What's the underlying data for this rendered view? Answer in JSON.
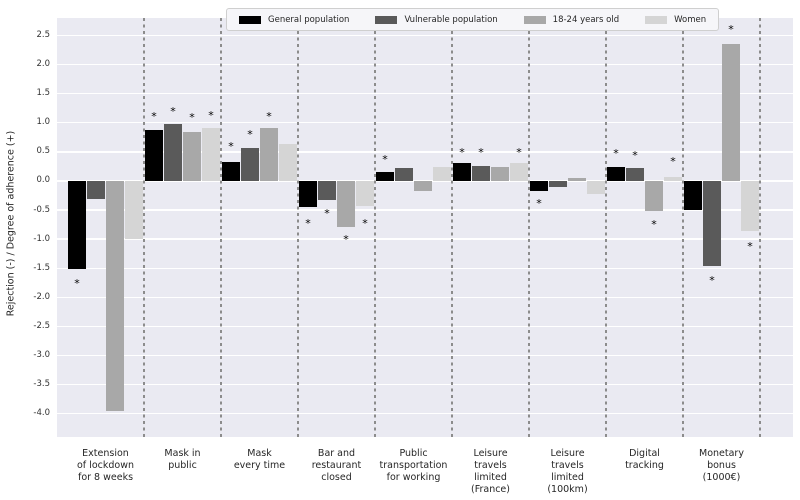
{
  "figure": {
    "ylabel": "Rejection (-) / Degree of adherence (+)"
  },
  "legend": {
    "position": "top-center",
    "items": [
      {
        "label": "General population",
        "color": "#000000"
      },
      {
        "label": "Vulnerable population",
        "color": "#5a5a5a"
      },
      {
        "label": "18-24 years old",
        "color": "#a8a8a8"
      },
      {
        "label": "Women",
        "color": "#d5d5d5"
      }
    ]
  },
  "chart_data": {
    "type": "bar",
    "title": "",
    "xlabel": "",
    "ylabel": "Rejection (-) / Degree of adherence (+)",
    "ylim": [
      -4.4,
      2.8
    ],
    "ytick_labels": [
      "2.5",
      "2.0",
      "1.5",
      "1.0",
      "0.5",
      "0.0",
      "-0.5",
      "-1.0",
      "-1.5",
      "-2.0",
      "-2.5",
      "-3.0",
      "-3.5",
      "-4.0"
    ],
    "ytick_values": [
      2.5,
      2.0,
      1.5,
      1.0,
      0.5,
      0.0,
      -0.5,
      -1.0,
      -1.5,
      -2.0,
      -2.5,
      -3.0,
      -3.5,
      -4.0
    ],
    "grid": true,
    "plot_background": "#eaeaf2",
    "group_separators": "dashed-vertical",
    "legend_position": "top-center",
    "categories": [
      "Extension of lockdown for 8 weeks",
      "Mask in public",
      "Mask every time",
      "Bar and restaurant closed",
      "Public transportation for working",
      "Leisure travels limited (France)",
      "Leisure travels limited (100km)",
      "Digital tracking",
      "Monetary bonus (1000€)"
    ],
    "categories_display": [
      "Extension\nof lockdown\nfor 8 weeks",
      "Mask in\npublic",
      "Mask\nevery time",
      "Bar and\nrestaurant\nclosed",
      "Public\ntransportation\nfor working",
      "Leisure\ntravels\nlimited\n(France)",
      "Leisure\ntravels\nlimited\n(100km)",
      "Digital\ntracking",
      "Monetary\nbonus\n(1000€)"
    ],
    "series": [
      {
        "name": "General population",
        "color": "#000000",
        "values": [
          -1.52,
          0.88,
          0.33,
          -0.45,
          0.15,
          0.3,
          -0.17,
          0.24,
          -0.5
        ],
        "significance_marker_y": [
          -1.72,
          1.14,
          0.62,
          -0.69,
          0.41,
          0.53,
          -0.36,
          0.5,
          null
        ]
      },
      {
        "name": "Vulnerable population",
        "color": "#5a5a5a",
        "values": [
          -0.31,
          0.98,
          0.57,
          -0.33,
          0.22,
          0.26,
          -0.1,
          0.22,
          -1.47
        ],
        "significance_marker_y": [
          null,
          1.22,
          0.84,
          -0.53,
          null,
          0.52,
          null,
          0.47,
          -1.67
        ]
      },
      {
        "name": "18-24 years old",
        "color": "#a8a8a8",
        "values": [
          -3.95,
          0.84,
          0.91,
          -0.79,
          -0.17,
          0.24,
          0.05,
          -0.52,
          2.36
        ],
        "significance_marker_y": [
          null,
          1.12,
          1.15,
          -0.97,
          null,
          null,
          null,
          -0.71,
          2.64
        ]
      },
      {
        "name": "Women",
        "color": "#d5d5d5",
        "values": [
          -1.0,
          0.91,
          0.64,
          -0.43,
          0.24,
          0.3,
          -0.22,
          0.07,
          -0.86
        ],
        "significance_marker_y": [
          null,
          1.16,
          null,
          -0.69,
          null,
          0.53,
          null,
          0.36,
          -1.09
        ]
      }
    ],
    "significance_symbol": "*"
  }
}
